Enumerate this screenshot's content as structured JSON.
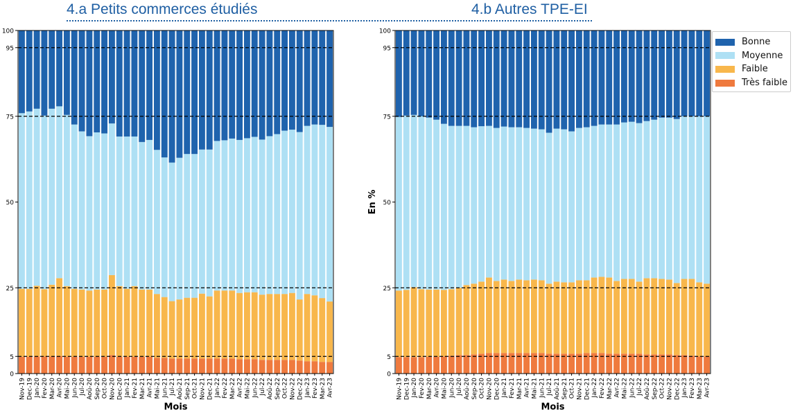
{
  "titles": {
    "panel_a": "4.a Petits commerces étudiés",
    "panel_b": "4.b Autres TPE-EI"
  },
  "colors": {
    "Bonne": "#1f63ad",
    "Moyenne": "#aee0f4",
    "Faible": "#f8b74c",
    "Tres_faible": "#ef7a3e",
    "reference_line": "#000000"
  },
  "legend": {
    "items": [
      {
        "label": "Bonne",
        "color": "#1f63ad"
      },
      {
        "label": "Moyenne",
        "color": "#aee0f4"
      },
      {
        "label": "Faible",
        "color": "#f8b74c"
      },
      {
        "label": "Très faible",
        "color": "#ef7a3e"
      }
    ],
    "placement": "right"
  },
  "chart_data": [
    {
      "type": "bar",
      "stacked": true,
      "title": "4.a Petits commerces étudiés",
      "xlabel": "Mois",
      "ylabel": "",
      "ylim": [
        0,
        100
      ],
      "yticks": [
        0,
        5,
        25,
        50,
        75,
        95,
        100
      ],
      "reference_lines": [
        5,
        25,
        75,
        95
      ],
      "categories": [
        "Nov-19",
        "Dec-19",
        "Jan-20",
        "Fev-20",
        "Mar-20",
        "Avr-20",
        "Mai-20",
        "Jun-20",
        "Jul-20",
        "Aoû-20",
        "Sep-20",
        "Oct-20",
        "Nov-20",
        "Dec-20",
        "Jan-21",
        "Fev-21",
        "Mar-21",
        "Avr-21",
        "Mai-21",
        "Jun-21",
        "Jul-21",
        "Aoû-21",
        "Sep-21",
        "Oct-21",
        "Nov-21",
        "Dec-21",
        "Jan-22",
        "Fev-22",
        "Mar-22",
        "Avr-22",
        "Mai-22",
        "Jun-22",
        "Jul-22",
        "Aoû-22",
        "Sep-22",
        "Oct-22",
        "Nov-22",
        "Dec-22",
        "Jan-23",
        "Fev-23",
        "Mar-23",
        "Avr-23"
      ],
      "tick_labels_shown": [
        "Nov-19",
        "Dec-19",
        "Jan-20",
        "Fev-20",
        "Mar-20",
        "Avr-20",
        "Mai-20",
        "Jun-20",
        "Jul-20",
        "Aoû-20",
        "Sep-20",
        "Oct-20",
        "Nov-20",
        "Dec-20",
        "Jan-21",
        "Fev-21",
        "Mar-21",
        "Avr-21",
        "Mai-21",
        "Jun-21",
        "Jul-21",
        "Aoû-21",
        "Sep-21",
        "Oct-21",
        "Nov-21",
        "Dec-21",
        "Jan-22",
        "Fev-22",
        "Mar-22",
        "Avr-22",
        "Mai-22",
        "Jun-22",
        "Jul-22",
        "Aoû-22",
        "Sep-22",
        "Oct-22",
        "Nov-22",
        "Dec-22",
        "Jan-23",
        "Fev-23",
        "Mar-23",
        "Avr-23"
      ],
      "series": [
        {
          "name": "Très faible",
          "values": [
            4.9,
            4.9,
            5.0,
            5.0,
            5.0,
            5.1,
            4.9,
            4.9,
            4.9,
            4.9,
            4.9,
            4.9,
            5.4,
            4.9,
            4.9,
            4.9,
            4.9,
            4.9,
            4.6,
            4.6,
            4.4,
            4.4,
            4.4,
            4.4,
            4.4,
            4.4,
            4.4,
            4.4,
            4.4,
            4.2,
            4.2,
            4.2,
            4.0,
            4.0,
            4.0,
            4.0,
            4.0,
            3.8,
            3.6,
            3.6,
            3.4,
            3.4
          ]
        },
        {
          "name": "Faible",
          "values": [
            19.8,
            19.8,
            20.6,
            19.6,
            20.9,
            22.7,
            20.6,
            19.8,
            19.6,
            19.3,
            19.6,
            19.6,
            23.3,
            20.6,
            19.8,
            20.6,
            19.6,
            19.6,
            18.6,
            17.7,
            16.7,
            17.2,
            17.7,
            17.7,
            18.9,
            18.1,
            19.8,
            19.8,
            19.8,
            19.3,
            19.5,
            19.5,
            19.0,
            19.2,
            19.2,
            19.2,
            19.5,
            17.8,
            19.6,
            19.2,
            18.6,
            17.6
          ]
        },
        {
          "name": "Moyenne",
          "values": [
            51.2,
            51.7,
            51.6,
            50.6,
            51.3,
            50.1,
            49.9,
            47.9,
            46.1,
            45.0,
            45.8,
            45.5,
            44.2,
            43.6,
            44.4,
            43.6,
            43.0,
            43.6,
            42.0,
            40.7,
            40.4,
            41.3,
            41.9,
            41.9,
            42.0,
            42.8,
            43.6,
            43.8,
            44.3,
            44.6,
            44.9,
            45.3,
            45.2,
            46.0,
            46.6,
            47.6,
            47.6,
            48.8,
            49.0,
            49.8,
            50.5,
            50.9
          ]
        },
        {
          "name": "Bonne",
          "values": [
            24.1,
            23.6,
            22.8,
            24.8,
            22.8,
            22.1,
            24.6,
            27.4,
            29.4,
            30.8,
            29.7,
            30.0,
            27.1,
            30.9,
            30.9,
            30.9,
            32.5,
            31.9,
            34.8,
            37.0,
            38.5,
            37.1,
            36.0,
            36.0,
            34.7,
            34.7,
            32.2,
            32.0,
            31.5,
            31.9,
            31.4,
            31.0,
            31.8,
            30.8,
            30.2,
            29.2,
            28.9,
            29.6,
            27.8,
            27.4,
            27.5,
            28.1
          ]
        }
      ]
    },
    {
      "type": "bar",
      "stacked": true,
      "title": "4.b Autres TPE-EI",
      "xlabel": "Mois",
      "ylabel": "En %",
      "ylim": [
        0,
        100
      ],
      "yticks": [
        0,
        5,
        25,
        50,
        75,
        95,
        100
      ],
      "reference_lines": [
        5,
        25,
        75,
        95
      ],
      "categories": [
        "Nov-19",
        "Dec-19",
        "Jan-20",
        "Fev-20",
        "Mar-20",
        "Avr-20",
        "Mai-20",
        "Jun-20",
        "Jul-20",
        "Aoû-20",
        "Sep-20",
        "Oct-20",
        "Nov-20",
        "Dec-20",
        "Jan-21",
        "Fev-21",
        "Mar-21",
        "Avr-21",
        "Mai-21",
        "Jun-21",
        "Jul-21",
        "Aoû-21",
        "Sep-21",
        "Oct-21",
        "Nov-21",
        "Dec-21",
        "Jan-22",
        "Fev-22",
        "Mar-22",
        "Avr-22",
        "Mai-22",
        "Jun-22",
        "Jul-22",
        "Aoû-22",
        "Sep-22",
        "Oct-22",
        "Nov-22",
        "Dec-22",
        "Jan-23",
        "Fev-23",
        "Mar-23",
        "Avr-23"
      ],
      "tick_labels_shown": [
        "Nov-19",
        "Dec-19",
        "Jan-20",
        "Fev-20",
        "Mar-20",
        "Avr-20",
        "Mai-20",
        "Jun-20",
        "Jul-20",
        "Aoû-20",
        "Sep-20",
        "Oct-20",
        "Nov-20",
        "Dec-20",
        "Jan-21",
        "Fev-21",
        "Mar-21",
        "Avr-21",
        "Mai-21",
        "Jun-21",
        "Jul-21",
        "Aoû-21",
        "Sep-21",
        "Oct-21",
        "Nov-21",
        "Dec-21",
        "Jan-22",
        "Fev-22",
        "Mar-22",
        "Avr-22",
        "Mai-22",
        "Jun-22",
        "Jul-22",
        "Aoû-22",
        "Sep-22",
        "Oct-22",
        "Nov-22",
        "Dec-22",
        "Jan-23",
        "Fev-23",
        "Mar-23",
        "Avr-23"
      ],
      "series": [
        {
          "name": "Très faible",
          "values": [
            4.8,
            4.8,
            4.8,
            4.8,
            4.9,
            4.9,
            5.0,
            5.2,
            5.4,
            5.4,
            5.6,
            5.8,
            6.0,
            6.0,
            6.0,
            6.0,
            6.0,
            6.0,
            6.0,
            6.0,
            5.8,
            5.8,
            5.8,
            5.8,
            5.8,
            6.0,
            6.0,
            6.0,
            5.8,
            5.8,
            5.8,
            5.8,
            5.8,
            5.6,
            5.6,
            5.6,
            5.6,
            5.4,
            5.4,
            5.2,
            5.0,
            5.0
          ]
        },
        {
          "name": "Faible",
          "values": [
            19.4,
            19.6,
            20.4,
            19.8,
            19.6,
            19.6,
            19.4,
            19.4,
            19.6,
            20.4,
            20.6,
            21.0,
            22.0,
            21.0,
            21.4,
            21.0,
            21.4,
            21.2,
            21.4,
            21.2,
            20.4,
            21.0,
            20.8,
            20.8,
            21.4,
            21.2,
            22.0,
            22.2,
            22.2,
            21.2,
            21.8,
            21.8,
            21.0,
            22.2,
            22.2,
            22.0,
            21.8,
            21.0,
            22.2,
            22.4,
            21.6,
            21.2
          ]
        },
        {
          "name": "Moyenne",
          "values": [
            50.6,
            50.8,
            50.2,
            50.4,
            50.1,
            49.5,
            48.4,
            47.6,
            47.2,
            46.4,
            45.6,
            45.3,
            44.2,
            44.6,
            44.6,
            44.8,
            44.4,
            44.4,
            44.0,
            44.0,
            44.0,
            44.6,
            44.6,
            44.0,
            44.4,
            44.6,
            44.2,
            44.4,
            44.6,
            45.6,
            45.6,
            45.8,
            46.2,
            45.8,
            46.2,
            47.0,
            47.2,
            47.8,
            47.4,
            47.4,
            48.4,
            48.8
          ]
        },
        {
          "name": "Bonne",
          "values": [
            25.2,
            24.8,
            24.6,
            25.0,
            25.4,
            26.0,
            27.2,
            27.8,
            27.8,
            27.8,
            28.2,
            27.9,
            27.8,
            28.4,
            28.0,
            28.2,
            28.2,
            28.4,
            28.6,
            28.8,
            29.8,
            28.6,
            28.8,
            29.4,
            28.4,
            28.2,
            27.8,
            27.4,
            27.4,
            27.4,
            26.8,
            26.6,
            27.0,
            26.4,
            26.0,
            25.4,
            25.4,
            25.8,
            25.0,
            25.0,
            25.0,
            25.0
          ]
        }
      ]
    }
  ]
}
